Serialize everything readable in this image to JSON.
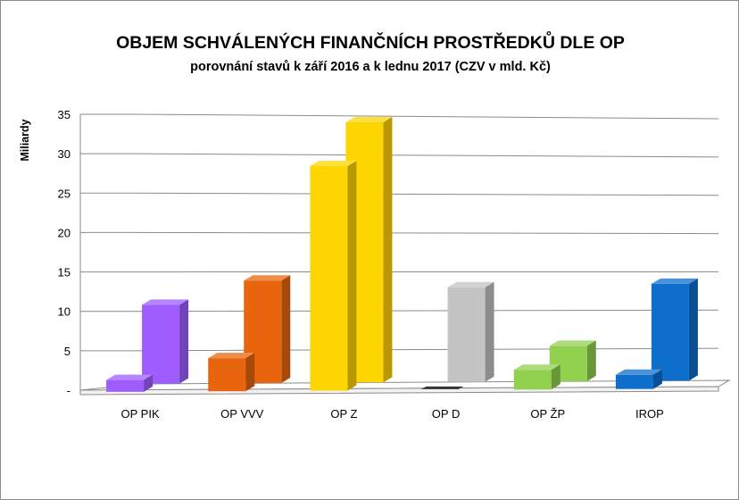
{
  "chart_data": {
    "type": "bar",
    "title": "OBJEM SCHVÁLENÝCH FINANČNÍCH PROSTŘEDKŮ DLE OP",
    "subtitle": "porovnání stavů k září 2016 a k lednu 2017 (CZV v mld. Kč)",
    "xlabel": "",
    "ylabel": "Miliardy",
    "ylim": [
      0,
      35
    ],
    "yticks": [
      "-",
      "5",
      "10",
      "15",
      "20",
      "25",
      "30",
      "35"
    ],
    "categories": [
      "OP PIK",
      "OP VVV",
      "OP Z",
      "OP D",
      "OP ŽP",
      "IROP"
    ],
    "series": [
      {
        "values": [
          1.5,
          4.2,
          28.5,
          0.0,
          2.5,
          1.8
        ]
      },
      {
        "values": [
          10.0,
          13.0,
          33.0,
          12.0,
          4.5,
          12.3
        ]
      }
    ],
    "colors": {
      "OP PIK": "#9f5cff",
      "OP VVV": "#e8650e",
      "OP Z": "#ffd500",
      "OP D": "#c4c4c4",
      "OP ŽP": "#92d050",
      "IROP": "#0e6ecc"
    },
    "grid": true,
    "legend": "none",
    "view": "3d"
  }
}
